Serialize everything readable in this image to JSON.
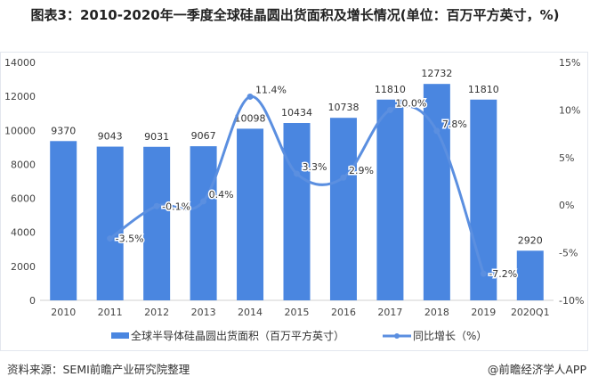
{
  "title": "图表3：2010-2020年一季度全球硅晶圆出货面积及增长情况(单位：百万平方英寸，%)",
  "source": "资料来源：SEMI前瞻产业研究院整理",
  "credit": "@前瞻经济学人APP",
  "chart_data": {
    "type": "bar+line",
    "categories": [
      "2010",
      "2011",
      "2012",
      "2013",
      "2014",
      "2015",
      "2016",
      "2017",
      "2018",
      "2019",
      "2020Q1"
    ],
    "series": [
      {
        "name": "全球半导体硅晶圆出货面积（百万平方英寸）",
        "type": "bar",
        "axis": "left",
        "color": "#4a86e0",
        "values": [
          9370,
          9043,
          9031,
          9067,
          10098,
          10434,
          10738,
          11810,
          12732,
          11810,
          2920
        ],
        "labels": [
          "9370",
          "9043",
          "9031",
          "9067",
          "10098",
          "10434",
          "10738",
          "11810",
          "12732",
          "11810",
          "2920"
        ]
      },
      {
        "name": "同比增长（%）",
        "type": "line",
        "axis": "right",
        "color": "#5b8fe0",
        "values": [
          null,
          -3.5,
          -0.1,
          0.4,
          11.4,
          3.3,
          2.9,
          10.0,
          7.8,
          -7.2,
          null
        ],
        "labels": [
          "",
          "-3.5%",
          "-0.1%",
          "0.4%",
          "11.4%",
          "3.3%",
          "2.9%",
          "10.0%",
          "7.8%",
          "-7.2%",
          ""
        ]
      }
    ],
    "yleft": {
      "min": 0,
      "max": 14000,
      "ticks": [
        "0",
        "2000",
        "4000",
        "6000",
        "8000",
        "10000",
        "12000",
        "14000"
      ]
    },
    "yright": {
      "min": -10,
      "max": 15,
      "ticks": [
        "-10%",
        "-5%",
        "0%",
        "5%",
        "10%",
        "15%"
      ]
    },
    "legend": "bottom",
    "grid": false
  }
}
